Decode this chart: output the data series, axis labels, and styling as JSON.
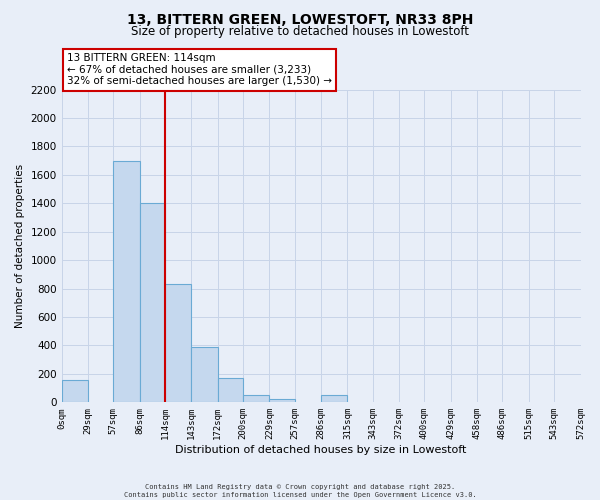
{
  "title": "13, BITTERN GREEN, LOWESTOFT, NR33 8PH",
  "subtitle": "Size of property relative to detached houses in Lowestoft",
  "xlabel": "Distribution of detached houses by size in Lowestoft",
  "ylabel": "Number of detached properties",
  "bar_edges": [
    0,
    29,
    57,
    86,
    114,
    143,
    172,
    200,
    229,
    257,
    286,
    315,
    343,
    372,
    400,
    429,
    458,
    486,
    515,
    543,
    572
  ],
  "bar_heights": [
    160,
    0,
    1700,
    1400,
    830,
    390,
    170,
    55,
    20,
    0,
    50,
    0,
    0,
    0,
    0,
    0,
    0,
    0,
    0,
    0
  ],
  "bar_color": "#c5d8ee",
  "bar_edgecolor": "#6aaad4",
  "vline_x": 114,
  "vline_color": "#cc0000",
  "ylim": [
    0,
    2200
  ],
  "yticks": [
    0,
    200,
    400,
    600,
    800,
    1000,
    1200,
    1400,
    1600,
    1800,
    2000,
    2200
  ],
  "annotation_title": "13 BITTERN GREEN: 114sqm",
  "annotation_line1": "← 67% of detached houses are smaller (3,233)",
  "annotation_line2": "32% of semi-detached houses are larger (1,530) →",
  "tick_labels": [
    "0sqm",
    "29sqm",
    "57sqm",
    "86sqm",
    "114sqm",
    "143sqm",
    "172sqm",
    "200sqm",
    "229sqm",
    "257sqm",
    "286sqm",
    "315sqm",
    "343sqm",
    "372sqm",
    "400sqm",
    "429sqm",
    "458sqm",
    "486sqm",
    "515sqm",
    "543sqm",
    "572sqm"
  ],
  "footer_line1": "Contains HM Land Registry data © Crown copyright and database right 2025.",
  "footer_line2": "Contains public sector information licensed under the Open Government Licence v3.0.",
  "background_color": "#e8eef8",
  "grid_color": "#c8d4e8",
  "title_fontsize": 10,
  "subtitle_fontsize": 8.5,
  "xlabel_fontsize": 8,
  "ylabel_fontsize": 7.5,
  "tick_fontsize": 6.5,
  "ytick_fontsize": 7.5,
  "footer_fontsize": 5,
  "annot_fontsize": 7.5
}
